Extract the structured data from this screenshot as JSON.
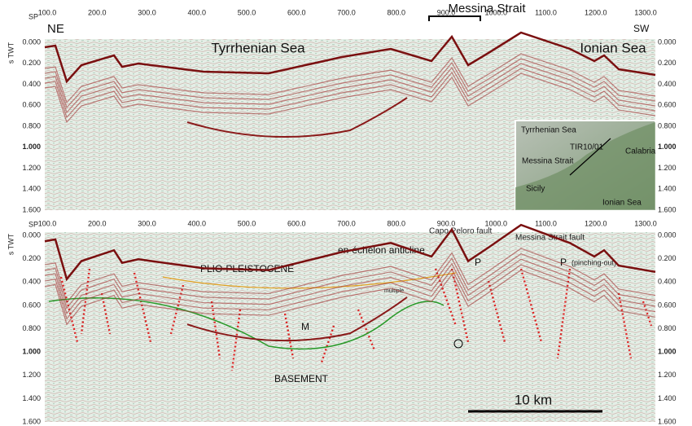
{
  "header": {
    "title": "Messina Strait"
  },
  "top_panel": {
    "sp_label": "SP",
    "y_axis_label": "s TWT",
    "x_ticks": [
      "100.0",
      "200.0",
      "300.0",
      "400.0",
      "500.0",
      "600.0",
      "700.0",
      "800.0",
      "900.0",
      "1000.0",
      "1100.0",
      "1200.0",
      "1300.0"
    ],
    "y_ticks": [
      "0.000",
      "0.200",
      "0.400",
      "0.600",
      "0.800",
      "1.000",
      "1.200",
      "1.400",
      "1.600"
    ],
    "left_direction": "NE",
    "right_direction": "SW",
    "left_region": "Tyrrhenian Sea",
    "right_region": "Ionian Sea",
    "inset": {
      "labels": [
        "Tyrrhenian Sea",
        "TIR10/01",
        "Calabria",
        "Messina Strait",
        "Sicily",
        "Ionian Sea"
      ]
    }
  },
  "bottom_panel": {
    "sp_label": "SP",
    "y_axis_label": "s TWT",
    "x_ticks": [
      "100.0",
      "200.0",
      "300.0",
      "400.0",
      "500.0",
      "600.0",
      "700.0",
      "800.0",
      "900.0",
      "1000.0",
      "1100.0",
      "1200.0",
      "1300.0"
    ],
    "y_ticks": [
      "0.000",
      "0.200",
      "0.400",
      "0.600",
      "0.800",
      "1.000",
      "1.200",
      "1.400",
      "1.600"
    ],
    "annotations": {
      "capo_peloro_fault": "Capo Peloro fault",
      "messina_strait_fault": "Messina Strait fault",
      "anticline": "en-échelon anticline",
      "p1": "P",
      "p2": "P",
      "pinching_out": "(pinching-out)",
      "plio_pleistocene": "PLIO-PLEISTOCENE",
      "multiple": "multiple",
      "m": "M",
      "basement": "BASEMENT"
    },
    "scale_bar": "10 km"
  }
}
